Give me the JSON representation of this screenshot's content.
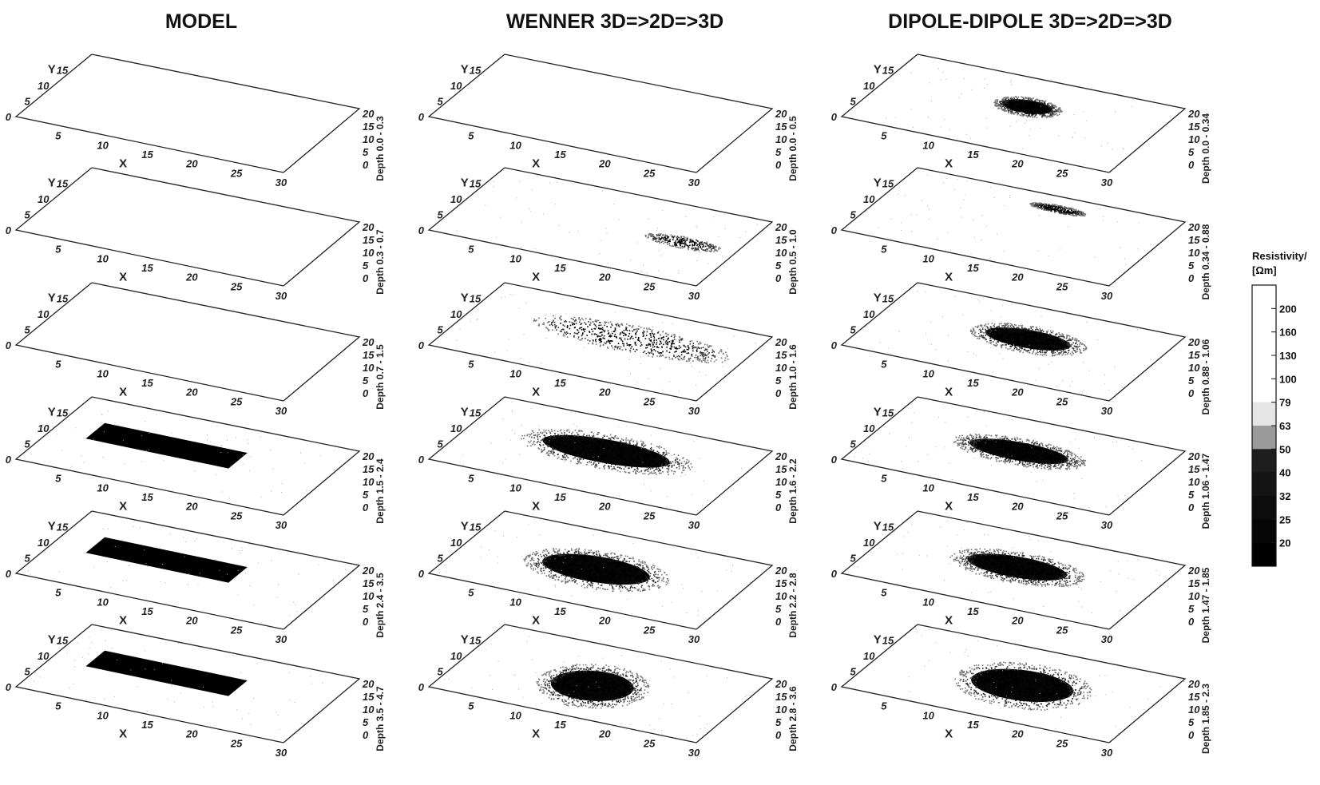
{
  "columns": [
    {
      "title": "MODEL"
    },
    {
      "title": "WENNER 3D=>2D=>3D"
    },
    {
      "title": "DIPOLE-DIPOLE 3D=>2D=>3D"
    }
  ],
  "axes": {
    "x_label": "X",
    "y_label": "Y",
    "x_ticks": [
      "5",
      "10",
      "15",
      "20",
      "25",
      "30"
    ],
    "y_ticks": [
      "0",
      "5",
      "10",
      "15",
      "20"
    ],
    "z_ticks": [
      "0",
      "5",
      "10",
      "15",
      "20"
    ]
  },
  "depth_labels": [
    [
      "Depth 0.0 - 0.3",
      "Depth 0.0 - 0.5",
      "Depth 0.0 - 0.34"
    ],
    [
      "Depth 0.3 - 0.7",
      "Depth 0.5 - 1.0",
      "Depth 0.34 - 0.88"
    ],
    [
      "Depth 0.7 - 1.5",
      "Depth 1.0 - 1.6",
      "Depth 0.88 - 1.06"
    ],
    [
      "Depth 1.5 - 2.4",
      "Depth 1.6 - 2.2",
      "Depth 1.06 - 1.47"
    ],
    [
      "Depth 2.4 - 3.5",
      "Depth 2.2 - 2.8",
      "Depth 1.47 - 1.85"
    ],
    [
      "Depth 3.5 - 4.7",
      "Depth 2.8 - 3.6",
      "Depth 1.85 - 2.3"
    ]
  ],
  "legend": {
    "title_line1": "Resistivity/",
    "title_line2": "[Ωm]",
    "levels": [
      "200",
      "160",
      "130",
      "100",
      "79",
      "63",
      "50",
      "40",
      "32",
      "25",
      "20"
    ],
    "colors": [
      "#ffffff",
      "#ffffff",
      "#ffffff",
      "#ffffff",
      "#ffffff",
      "#e6e6e6",
      "#9a9a9a",
      "#1e1e1e",
      "#141414",
      "#0c0c0c",
      "#060606",
      "#000000"
    ]
  },
  "anomalies": [
    [
      null,
      null,
      {
        "x": [
          12,
          19
        ],
        "y": [
          10,
          15
        ],
        "d": 0.8,
        "dark": 0.6
      }
    ],
    [
      null,
      {
        "x": [
          20,
          28
        ],
        "y": [
          9,
          12
        ],
        "d": 0.35,
        "dark": 0.2
      },
      {
        "x": [
          14,
          20
        ],
        "y": [
          16,
          18
        ],
        "d": 0.45,
        "dark": 0.3
      }
    ],
    [
      null,
      {
        "x": [
          7,
          28
        ],
        "y": [
          9,
          16
        ],
        "d": 0.75,
        "dark": 0.5
      },
      {
        "x": [
          10,
          22
        ],
        "y": [
          8,
          15
        ],
        "d": 0.85,
        "dark": 0.65
      }
    ],
    [
      {
        "x": [
          4,
          20
        ],
        "y": [
          9,
          14
        ],
        "d": 1,
        "dark": 1
      },
      {
        "x": [
          6,
          24
        ],
        "y": [
          7,
          16
        ],
        "d": 0.97,
        "dark": 0.85
      },
      {
        "x": [
          8,
          22
        ],
        "y": [
          8,
          15
        ],
        "d": 0.97,
        "dark": 0.9
      }
    ],
    [
      {
        "x": [
          4,
          20
        ],
        "y": [
          9,
          14
        ],
        "d": 1,
        "dark": 1
      },
      {
        "x": [
          7,
          22
        ],
        "y": [
          5,
          15
        ],
        "d": 0.98,
        "dark": 0.9
      },
      {
        "x": [
          8,
          22
        ],
        "y": [
          7,
          15
        ],
        "d": 0.97,
        "dark": 0.9
      }
    ],
    [
      {
        "x": [
          4,
          20
        ],
        "y": [
          9,
          14
        ],
        "d": 1,
        "dark": 1
      },
      {
        "x": [
          9,
          20
        ],
        "y": [
          3,
          15
        ],
        "d": 0.98,
        "dark": 0.9
      },
      {
        "x": [
          9,
          23
        ],
        "y": [
          4,
          16
        ],
        "d": 0.98,
        "dark": 0.9
      }
    ]
  ]
}
